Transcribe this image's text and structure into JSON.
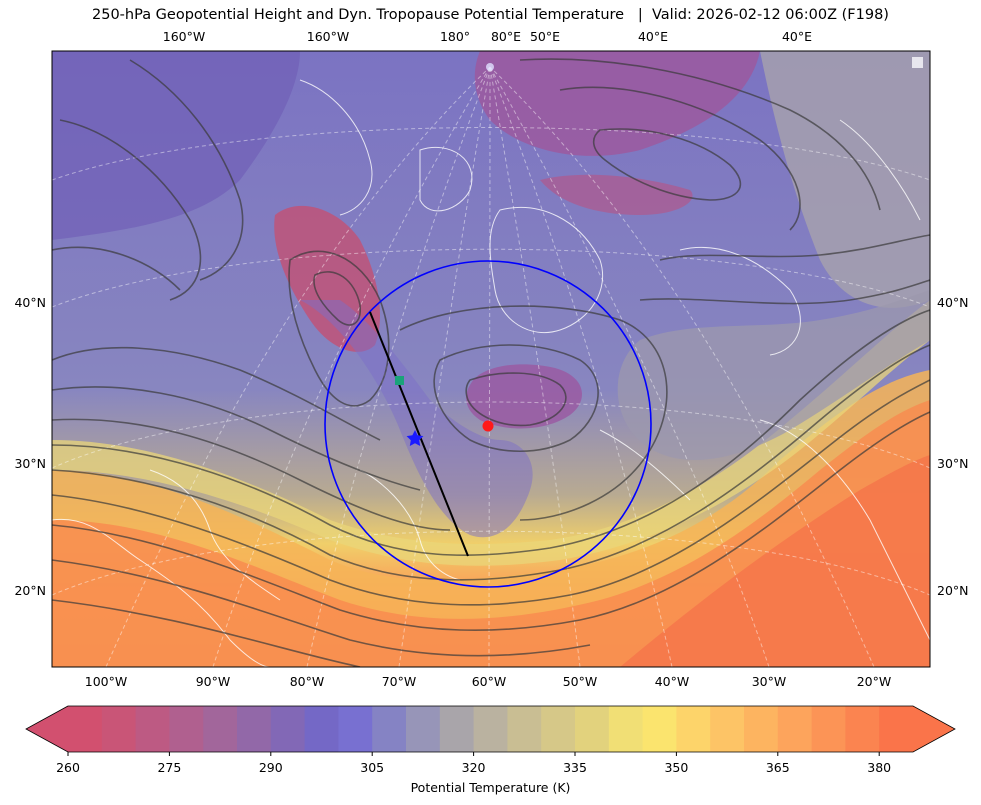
{
  "title": "250-hPa Geopotential Height and Dyn. Tropopause Potential Temperature   |  Valid: 2026-02-12 06:00Z (F198)",
  "map": {
    "top_lon_labels": [
      "160°W",
      "160°W",
      "180°",
      "80°E",
      "50°E",
      "40°E",
      "40°E"
    ],
    "bottom_lon_labels": [
      "100°W",
      "90°W",
      "80°W",
      "70°W",
      "60°W",
      "50°W",
      "40°W",
      "30°W",
      "20°W"
    ],
    "left_lat_labels": [
      "40°N",
      "30°N",
      "20°N"
    ],
    "right_lat_labels": [
      "40°N",
      "30°N",
      "20°N"
    ],
    "markers": [
      {
        "name": "center",
        "symbol": "circle",
        "color": "#ff1a1a"
      },
      {
        "name": "star",
        "symbol": "star",
        "color": "#1a1aff"
      },
      {
        "name": "square",
        "symbol": "square",
        "color": "#1aa37a"
      }
    ],
    "range_ring_color": "#0000ff",
    "cross_section_color": "#000000"
  },
  "colorbar": {
    "label": "Potential Temperature (K)",
    "ticks": [
      "260",
      "275",
      "290",
      "305",
      "320",
      "335",
      "350",
      "365",
      "380"
    ],
    "colors": [
      "#d2506f",
      "#c95577",
      "#bd5a83",
      "#b0608f",
      "#a2669b",
      "#9268a8",
      "#8268b6",
      "#7468c6",
      "#7870d1",
      "#8583c4",
      "#9795b8",
      "#a9a5aa",
      "#bab2a0",
      "#c9be93",
      "#d6c888",
      "#e2d27d",
      "#f1df75",
      "#fbe46e",
      "#fdd46a",
      "#fdc466",
      "#fdb460",
      "#fda45c",
      "#fc9456",
      "#fb8450",
      "#fa744a"
    ]
  }
}
